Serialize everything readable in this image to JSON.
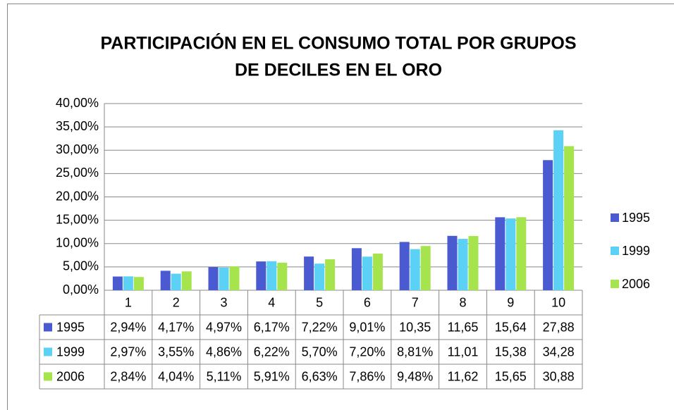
{
  "chart_data": {
    "type": "bar",
    "title": [
      "PARTICIPACIÓN EN EL CONSUMO TOTAL POR GRUPOS",
      "DE DECILES EN EL ORO"
    ],
    "categories": [
      "1",
      "2",
      "3",
      "4",
      "5",
      "6",
      "7",
      "8",
      "9",
      "10"
    ],
    "series": [
      {
        "name": "1995",
        "color": "#4a5ad0",
        "values": [
          2.94,
          4.17,
          4.97,
          6.17,
          7.22,
          9.01,
          10.35,
          11.65,
          15.64,
          27.88
        ],
        "value_labels": [
          "2,94%",
          "4,17%",
          "4,97%",
          "6,17%",
          "7,22%",
          "9,01%",
          "10,35",
          "11,65",
          "15,64",
          "27,88"
        ]
      },
      {
        "name": "1999",
        "color": "#5bd2f5",
        "values": [
          2.97,
          3.55,
          4.86,
          6.22,
          5.7,
          7.2,
          8.81,
          11.01,
          15.38,
          34.28
        ],
        "value_labels": [
          "2,97%",
          "3,55%",
          "4,86%",
          "6,22%",
          "5,70%",
          "7,20%",
          "8,81%",
          "11,01",
          "15,38",
          "34,28"
        ]
      },
      {
        "name": "2006",
        "color": "#a6e44e",
        "values": [
          2.84,
          4.04,
          5.11,
          5.91,
          6.63,
          7.86,
          9.48,
          11.62,
          15.65,
          30.88
        ],
        "value_labels": [
          "2,84%",
          "4,04%",
          "5,11%",
          "5,91%",
          "6,63%",
          "7,86%",
          "9,48%",
          "11,62",
          "15,65",
          "30,88"
        ]
      }
    ],
    "ylim": [
      0,
      40
    ],
    "yticks": [
      {
        "value": 0,
        "label": "0,00%"
      },
      {
        "value": 5,
        "label": "5,00%"
      },
      {
        "value": 10,
        "label": "10,00%"
      },
      {
        "value": 15,
        "label": "15,00%"
      },
      {
        "value": 20,
        "label": "20,00%"
      },
      {
        "value": 25,
        "label": "25,00%"
      },
      {
        "value": 30,
        "label": "30,00%"
      },
      {
        "value": 35,
        "label": "35,00%"
      },
      {
        "value": 40,
        "label": "40,00%"
      }
    ],
    "grid": true,
    "legend": "right"
  }
}
